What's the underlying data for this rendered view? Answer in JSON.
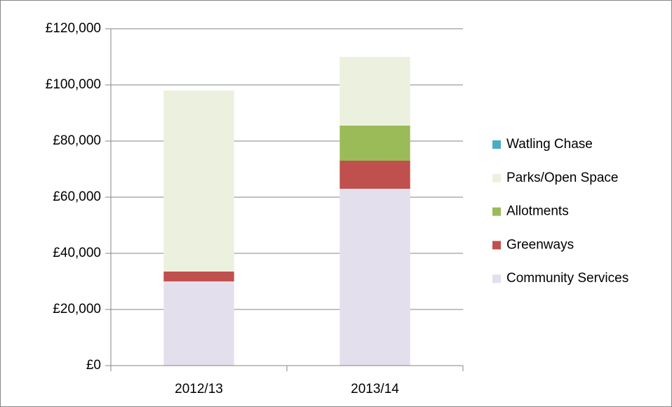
{
  "chart_data": {
    "type": "stacked-bar",
    "categories": [
      "2012/13",
      "2013/14"
    ],
    "series": [
      {
        "name": "Community Services",
        "color": "#e4dfec",
        "values": [
          30000,
          63000
        ]
      },
      {
        "name": "Greenways",
        "color": "#c0504d",
        "values": [
          3500,
          10000
        ]
      },
      {
        "name": "Allotments",
        "color": "#9bbb59",
        "values": [
          0,
          12500
        ]
      },
      {
        "name": "Parks/Open Space",
        "color": "#ebf1de",
        "values": [
          64500,
          24500
        ]
      },
      {
        "name": "Watling Chase",
        "color": "#4bacc6",
        "values": [
          0,
          0
        ]
      }
    ],
    "ylim": [
      0,
      120000
    ],
    "yticks": [
      {
        "value": 0,
        "label": "£0"
      },
      {
        "value": 20000,
        "label": "£20,000"
      },
      {
        "value": 40000,
        "label": "£40,000"
      },
      {
        "value": 60000,
        "label": "£60,000"
      },
      {
        "value": 80000,
        "label": "£80,000"
      },
      {
        "value": 100000,
        "label": "£100,000"
      },
      {
        "value": 120000,
        "label": "£120,000"
      }
    ],
    "grid": true,
    "legend": "right"
  }
}
